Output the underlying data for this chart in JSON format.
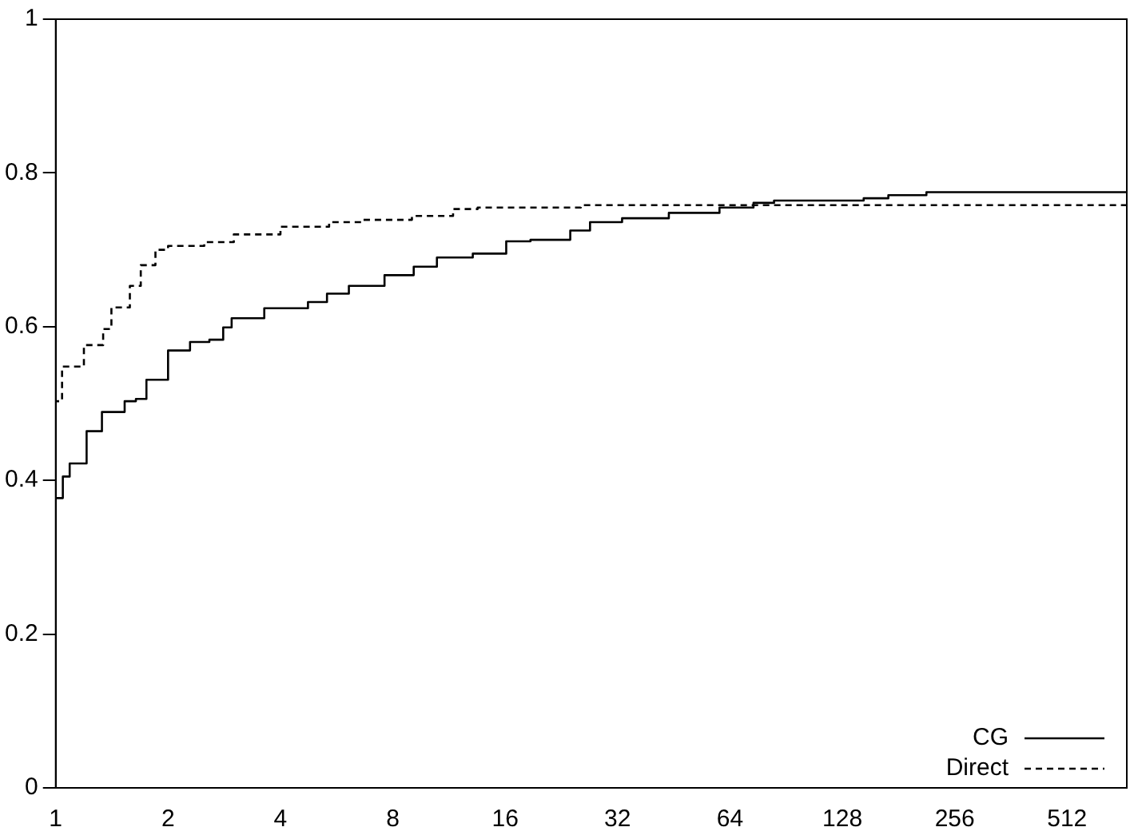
{
  "chart_data": {
    "type": "step",
    "log": "x",
    "xlim": [
      1,
      740
    ],
    "xticks": [
      1,
      2,
      4,
      8,
      16,
      32,
      64,
      128,
      256,
      512
    ],
    "ylim": [
      0,
      1
    ],
    "yticks": [
      0,
      0.2,
      0.4,
      0.6,
      0.8,
      1
    ],
    "grid": false,
    "legend": "bottom right",
    "marker": "none",
    "series": [
      {
        "name": "CG",
        "color": "#000000",
        "line_style": "solid",
        "x": [
          1,
          1.045,
          1.09,
          1.21,
          1.33,
          1.53,
          1.64,
          1.75,
          2,
          2.29,
          2.58,
          2.81,
          2.96,
          3.62,
          4.74,
          5.33,
          6.1,
          7.6,
          9.1,
          10.5,
          13.1,
          16.1,
          18.7,
          23.9,
          27,
          32.9,
          43.9,
          60,
          74,
          84,
          146,
          170,
          215,
          318,
          740
        ],
        "values": [
          0.37,
          0.377,
          0.405,
          0.422,
          0.464,
          0.489,
          0.503,
          0.506,
          0.531,
          0.569,
          0.58,
          0.583,
          0.599,
          0.611,
          0.624,
          0.632,
          0.643,
          0.653,
          0.667,
          0.678,
          0.69,
          0.695,
          0.711,
          0.713,
          0.725,
          0.736,
          0.741,
          0.748,
          0.755,
          0.761,
          0.764,
          0.767,
          0.771,
          0.775,
          0.775
        ]
      },
      {
        "name": "Direct",
        "color": "#000000",
        "line_style": "dashed",
        "x": [
          1,
          1.04,
          1.19,
          1.34,
          1.41,
          1.58,
          1.69,
          1.85,
          2,
          2.5,
          3,
          4,
          5.4,
          6.6,
          9,
          11.6,
          13.5,
          25.5,
          35.9,
          740
        ],
        "values": [
          0.47,
          0.503,
          0.548,
          0.576,
          0.597,
          0.625,
          0.653,
          0.68,
          0.7,
          0.705,
          0.71,
          0.72,
          0.73,
          0.736,
          0.739,
          0.744,
          0.753,
          0.755,
          0.758,
          0.758
        ]
      }
    ]
  }
}
